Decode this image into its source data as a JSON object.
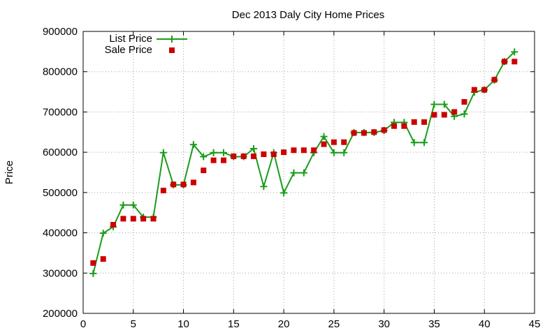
{
  "chart_data": {
    "type": "line",
    "title": "Dec 2013 Daly City Home Prices",
    "xlabel": "",
    "ylabel": "Price",
    "xlim": [
      0,
      45
    ],
    "ylim": [
      200000,
      900000
    ],
    "xticks": [
      "0",
      "5",
      "10",
      "15",
      "20",
      "25",
      "30",
      "35",
      "40",
      "45"
    ],
    "yticks": [
      "200000",
      "300000",
      "400000",
      "500000",
      "600000",
      "700000",
      "800000",
      "900000"
    ],
    "grid": true,
    "legend_position": "top-left",
    "series": [
      {
        "name": "List Price",
        "style": "line+cross",
        "color": "#1a9c1a",
        "x": [
          1,
          2,
          3,
          4,
          5,
          6,
          7,
          8,
          9,
          10,
          11,
          12,
          13,
          14,
          15,
          16,
          17,
          18,
          19,
          20,
          21,
          22,
          23,
          24,
          25,
          26,
          27,
          28,
          29,
          30,
          31,
          32,
          33,
          34,
          35,
          36,
          37,
          38,
          39,
          40,
          41,
          42,
          43
        ],
        "values": [
          299000,
          399000,
          415000,
          469000,
          469000,
          439000,
          439000,
          599000,
          519000,
          519000,
          619000,
          589000,
          599000,
          599000,
          589000,
          589000,
          609000,
          515000,
          599000,
          499000,
          549000,
          549000,
          599000,
          639000,
          599000,
          599000,
          649000,
          649000,
          649000,
          654000,
          674000,
          674000,
          624000,
          624000,
          719000,
          719000,
          689000,
          695000,
          749000,
          755000,
          779000,
          825000,
          849000
        ]
      },
      {
        "name": "Sale Price",
        "style": "square",
        "color": "#cc0000",
        "x": [
          1,
          2,
          3,
          4,
          5,
          6,
          7,
          8,
          9,
          10,
          11,
          12,
          13,
          14,
          15,
          16,
          17,
          18,
          19,
          20,
          21,
          22,
          23,
          24,
          25,
          26,
          27,
          28,
          29,
          30,
          31,
          32,
          33,
          34,
          35,
          36,
          37,
          38,
          39,
          40,
          41,
          42,
          43
        ],
        "values": [
          325000,
          335000,
          420000,
          435000,
          435000,
          435000,
          435000,
          505000,
          520000,
          520000,
          525000,
          555000,
          580000,
          580000,
          590000,
          590000,
          590000,
          595000,
          595000,
          600000,
          605000,
          605000,
          605000,
          620000,
          625000,
          625000,
          648000,
          648000,
          650000,
          655000,
          665000,
          665000,
          675000,
          675000,
          693000,
          693000,
          700000,
          725000,
          755000,
          755000,
          780000,
          825000,
          825000
        ]
      }
    ]
  }
}
